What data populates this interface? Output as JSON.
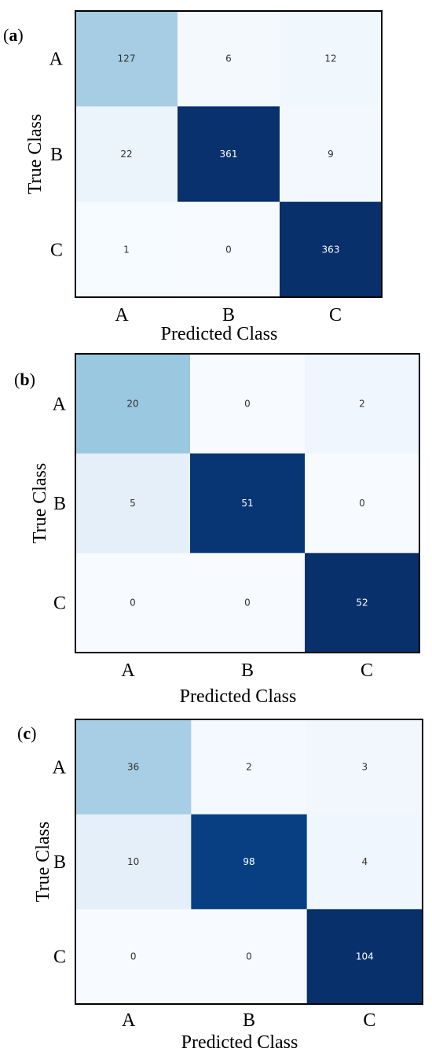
{
  "chart_data": [
    {
      "type": "heatmap",
      "panel_label": "a",
      "xlabel": "Predicted Class",
      "ylabel": "True Class",
      "x_categories": [
        "A",
        "B",
        "C"
      ],
      "y_categories": [
        "A",
        "B",
        "C"
      ],
      "values": [
        [
          127,
          6,
          12
        ],
        [
          22,
          361,
          9
        ],
        [
          1,
          0,
          363
        ]
      ],
      "colormap": "Blues"
    },
    {
      "type": "heatmap",
      "panel_label": "b",
      "xlabel": "Predicted Class",
      "ylabel": "True Class",
      "x_categories": [
        "A",
        "B",
        "C"
      ],
      "y_categories": [
        "A",
        "B",
        "C"
      ],
      "values": [
        [
          20,
          0,
          2
        ],
        [
          5,
          51,
          0
        ],
        [
          0,
          0,
          52
        ]
      ],
      "colormap": "Blues"
    },
    {
      "type": "heatmap",
      "panel_label": "c",
      "xlabel": "Predicted Class",
      "ylabel": "True Class",
      "x_categories": [
        "A",
        "B",
        "C"
      ],
      "y_categories": [
        "A",
        "B",
        "C"
      ],
      "values": [
        [
          36,
          2,
          3
        ],
        [
          10,
          98,
          4
        ],
        [
          0,
          0,
          104
        ]
      ],
      "colormap": "Blues"
    }
  ],
  "colors": {
    "light": "#f7fbff",
    "mid": "#9ecae1",
    "dark": "#08306b"
  }
}
